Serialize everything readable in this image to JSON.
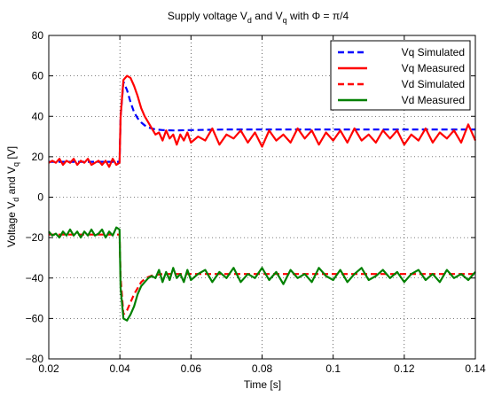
{
  "chart_data": {
    "type": "line",
    "title_parts": {
      "lead": "Supply voltage V",
      "sub1": "d",
      "mid": " and V",
      "sub2": "q",
      "tail": " with Φ = π/4"
    },
    "xlabel": "Time [s]",
    "ylabel_parts": {
      "lead": "Voltage  V",
      "sub1": "d",
      "mid": " and V",
      "sub2": "q",
      "tail": " [V]"
    },
    "xlim": [
      0.02,
      0.14
    ],
    "ylim": [
      -80,
      80
    ],
    "x_ticks": [
      0.02,
      0.04,
      0.06,
      0.08,
      0.1,
      0.12,
      0.14
    ],
    "x_tick_labels": [
      "0.02",
      "0.04",
      "0.06",
      "0.08",
      "0.1",
      "0.12",
      "0.14"
    ],
    "y_ticks": [
      -80,
      -60,
      -40,
      -20,
      0,
      20,
      40,
      60,
      80
    ],
    "y_tick_labels": [
      "−80",
      "−60",
      "−40",
      "−20",
      "0",
      "20",
      "40",
      "60",
      "80"
    ],
    "grid": true,
    "grid_style": "dotted",
    "legend_position": "top-right",
    "series": [
      {
        "name": "Vq Simulated",
        "color": "#0000ff",
        "style": "dashed",
        "x": [
          0.02,
          0.025,
          0.03,
          0.035,
          0.0399,
          0.0402,
          0.041,
          0.042,
          0.043,
          0.044,
          0.045,
          0.046,
          0.047,
          0.048,
          0.049,
          0.05,
          0.052,
          0.055,
          0.06,
          0.07,
          0.08,
          0.09,
          0.1,
          0.11,
          0.12,
          0.13,
          0.14
        ],
        "y": [
          17.5,
          17.5,
          17.5,
          17.5,
          17.5,
          40,
          57,
          53,
          47,
          42,
          39,
          37,
          35.5,
          34.5,
          34,
          33.5,
          33.2,
          33,
          33.2,
          33.5,
          33.5,
          33.5,
          33.5,
          33.5,
          33.5,
          33.5,
          33.5
        ]
      },
      {
        "name": "Vq Measured",
        "color": "#ff0000",
        "style": "solid",
        "x": [
          0.02,
          0.021,
          0.022,
          0.023,
          0.024,
          0.025,
          0.026,
          0.027,
          0.028,
          0.029,
          0.03,
          0.031,
          0.032,
          0.033,
          0.034,
          0.035,
          0.036,
          0.037,
          0.038,
          0.039,
          0.0399,
          0.0402,
          0.041,
          0.042,
          0.043,
          0.044,
          0.045,
          0.046,
          0.047,
          0.048,
          0.049,
          0.05,
          0.051,
          0.052,
          0.053,
          0.054,
          0.055,
          0.056,
          0.057,
          0.058,
          0.059,
          0.06,
          0.062,
          0.064,
          0.066,
          0.068,
          0.07,
          0.072,
          0.074,
          0.076,
          0.078,
          0.08,
          0.082,
          0.084,
          0.086,
          0.088,
          0.09,
          0.092,
          0.094,
          0.096,
          0.098,
          0.1,
          0.102,
          0.104,
          0.106,
          0.108,
          0.11,
          0.112,
          0.114,
          0.116,
          0.118,
          0.12,
          0.122,
          0.124,
          0.126,
          0.128,
          0.13,
          0.132,
          0.134,
          0.136,
          0.138,
          0.14
        ],
        "y": [
          17,
          18,
          17,
          19,
          16,
          18,
          17,
          19,
          16,
          18,
          17,
          19,
          16,
          17,
          18,
          16,
          18,
          15,
          19,
          16,
          17,
          40,
          58,
          60,
          59,
          55,
          50,
          44,
          40,
          37,
          34,
          31,
          32,
          28,
          33,
          29,
          31,
          26,
          31,
          28,
          32,
          27,
          30,
          28,
          34,
          26,
          31,
          29,
          33,
          27,
          32,
          25,
          33,
          28,
          31,
          27,
          34,
          29,
          33,
          26,
          32,
          28,
          33,
          27,
          34,
          28,
          31,
          27,
          33,
          29,
          33,
          26,
          31,
          28,
          34,
          27,
          32,
          29,
          33,
          27,
          36,
          28
        ]
      },
      {
        "name": "Vd Simulated",
        "color": "#ff0000",
        "style": "dashed",
        "x": [
          0.02,
          0.025,
          0.03,
          0.035,
          0.0399,
          0.0402,
          0.041,
          0.042,
          0.043,
          0.044,
          0.045,
          0.046,
          0.047,
          0.048,
          0.049,
          0.05,
          0.052,
          0.055,
          0.06,
          0.07,
          0.08,
          0.09,
          0.1,
          0.11,
          0.12,
          0.13,
          0.14
        ],
        "y": [
          -18.5,
          -18.5,
          -18.5,
          -18.5,
          -18.5,
          -40,
          -58,
          -56,
          -52,
          -48,
          -45,
          -42,
          -40.5,
          -39.5,
          -38.8,
          -38.5,
          -38,
          -38,
          -38,
          -38,
          -38,
          -38,
          -38,
          -38,
          -38,
          -38,
          -38
        ]
      },
      {
        "name": "Vd Measured",
        "color": "#008000",
        "style": "solid",
        "x": [
          0.02,
          0.021,
          0.022,
          0.023,
          0.024,
          0.025,
          0.026,
          0.027,
          0.028,
          0.029,
          0.03,
          0.031,
          0.032,
          0.033,
          0.034,
          0.035,
          0.036,
          0.037,
          0.038,
          0.039,
          0.0399,
          0.0402,
          0.041,
          0.042,
          0.043,
          0.044,
          0.045,
          0.046,
          0.047,
          0.048,
          0.049,
          0.05,
          0.051,
          0.052,
          0.053,
          0.054,
          0.055,
          0.056,
          0.057,
          0.058,
          0.059,
          0.06,
          0.062,
          0.064,
          0.066,
          0.068,
          0.07,
          0.072,
          0.074,
          0.076,
          0.078,
          0.08,
          0.082,
          0.084,
          0.086,
          0.088,
          0.09,
          0.092,
          0.094,
          0.096,
          0.098,
          0.1,
          0.102,
          0.104,
          0.106,
          0.108,
          0.11,
          0.112,
          0.114,
          0.116,
          0.118,
          0.12,
          0.122,
          0.124,
          0.126,
          0.128,
          0.13,
          0.132,
          0.134,
          0.136,
          0.138,
          0.14
        ],
        "y": [
          -17,
          -19,
          -18,
          -20,
          -17,
          -19,
          -16,
          -19,
          -17,
          -20,
          -17,
          -19,
          -16,
          -19,
          -18,
          -16,
          -20,
          -17,
          -19,
          -15,
          -16,
          -45,
          -60,
          -61,
          -58,
          -54,
          -48,
          -44,
          -42,
          -40,
          -39,
          -40,
          -36,
          -42,
          -37,
          -41,
          -35,
          -40,
          -38,
          -42,
          -36,
          -41,
          -38,
          -36,
          -42,
          -37,
          -40,
          -35,
          -42,
          -38,
          -40,
          -35,
          -41,
          -37,
          -43,
          -36,
          -40,
          -38,
          -42,
          -35,
          -39,
          -41,
          -36,
          -42,
          -38,
          -35,
          -41,
          -39,
          -36,
          -40,
          -37,
          -42,
          -38,
          -36,
          -41,
          -38,
          -42,
          -36,
          -40,
          -38,
          -41,
          -37
        ]
      }
    ]
  }
}
